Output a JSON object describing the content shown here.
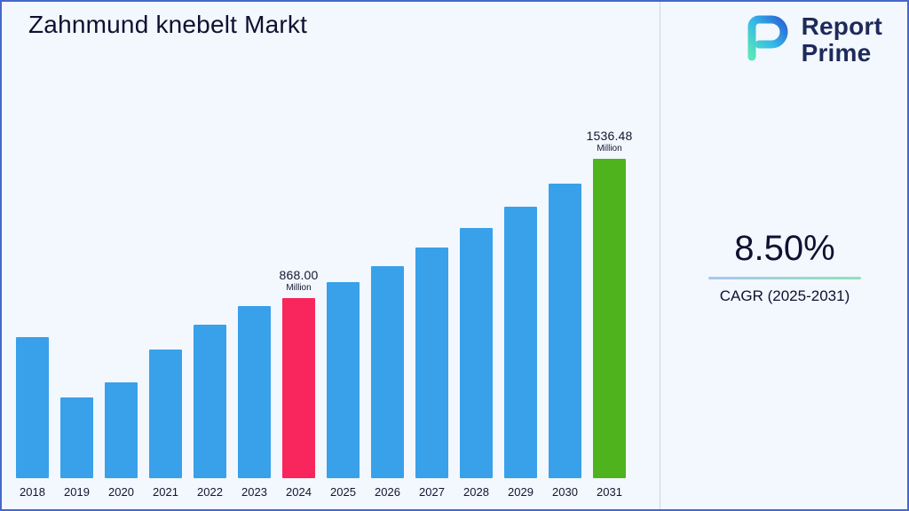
{
  "title": "Zahnmund knebelt Markt",
  "logo": {
    "name_line1": "Report",
    "name_line2": "Prime"
  },
  "cagr": {
    "value": "8.50%",
    "label": "CAGR (2025-2031)"
  },
  "chart_data": {
    "type": "bar",
    "title": "Zahnmund knebelt Markt",
    "categories": [
      "2018",
      "2019",
      "2020",
      "2021",
      "2022",
      "2023",
      "2024",
      "2025",
      "2026",
      "2027",
      "2028",
      "2029",
      "2030",
      "2031"
    ],
    "values": [
      680,
      390,
      460,
      620,
      740,
      826,
      868,
      941.75,
      1021.8,
      1108.65,
      1202.89,
      1305.13,
      1416.07,
      1536.48
    ],
    "unit": "Million",
    "ylim": [
      0,
      1600
    ],
    "grid": false,
    "legend": "none",
    "bar_colors": {
      "default": "#38A1EA",
      "2024": "#F8265C",
      "2031": "#4FB31E"
    },
    "annotations": [
      {
        "category": "2024",
        "value": "868.00",
        "unit": "Million"
      },
      {
        "category": "2031",
        "value": "1536.48",
        "unit": "Million"
      }
    ]
  },
  "colors": {
    "background": "#F3F7FE",
    "border": "#4468CC",
    "divider": "#CBD7EC",
    "text": "#0E1130",
    "underline_gradient_start": "#A9C6F2",
    "underline_gradient_end": "#8FE3B8"
  }
}
